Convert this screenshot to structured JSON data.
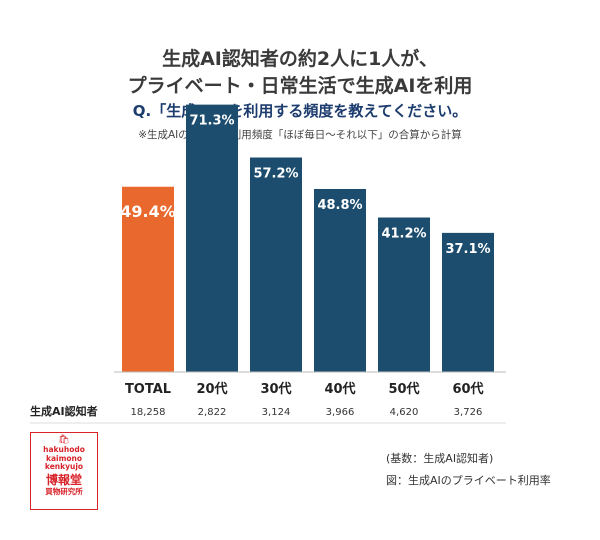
{
  "header": {
    "title_line1": "生成AI認知者の約2人に1人が、",
    "title_line2": "プライベート・日常生活で生成AIを利用",
    "question": "Q.「生成AI」を利用する頻度を教えてください。",
    "note": "※生成AIの利用率は利用頻度「ほぼ毎日〜それ以下」の合算から計算"
  },
  "chart_data": {
    "type": "bar",
    "categories": [
      "TOTAL",
      "20代",
      "30代",
      "40代",
      "50代",
      "60代"
    ],
    "values": [
      49.4,
      71.3,
      57.2,
      48.8,
      41.2,
      37.1
    ],
    "value_labels": [
      "49.4%",
      "71.3%",
      "57.2%",
      "48.8%",
      "41.2%",
      "37.1%"
    ],
    "ylim": [
      0,
      80
    ],
    "grid": false,
    "colors": {
      "total": "#e8682e",
      "others": "#1c4d6e"
    },
    "sample_row": {
      "label": "生成AI認知者",
      "counts": [
        "18,258",
        "2,822",
        "3,124",
        "3,966",
        "4,620",
        "3,726"
      ]
    }
  },
  "footer": {
    "base": "(基数：生成AI認知者)",
    "caption": "図：生成AIのプライベート利用率"
  },
  "logo": {
    "latin": [
      "hakuhodo",
      "kaimono",
      "kenkyujo"
    ],
    "jp": "博報堂",
    "sub": "買物研究所"
  }
}
